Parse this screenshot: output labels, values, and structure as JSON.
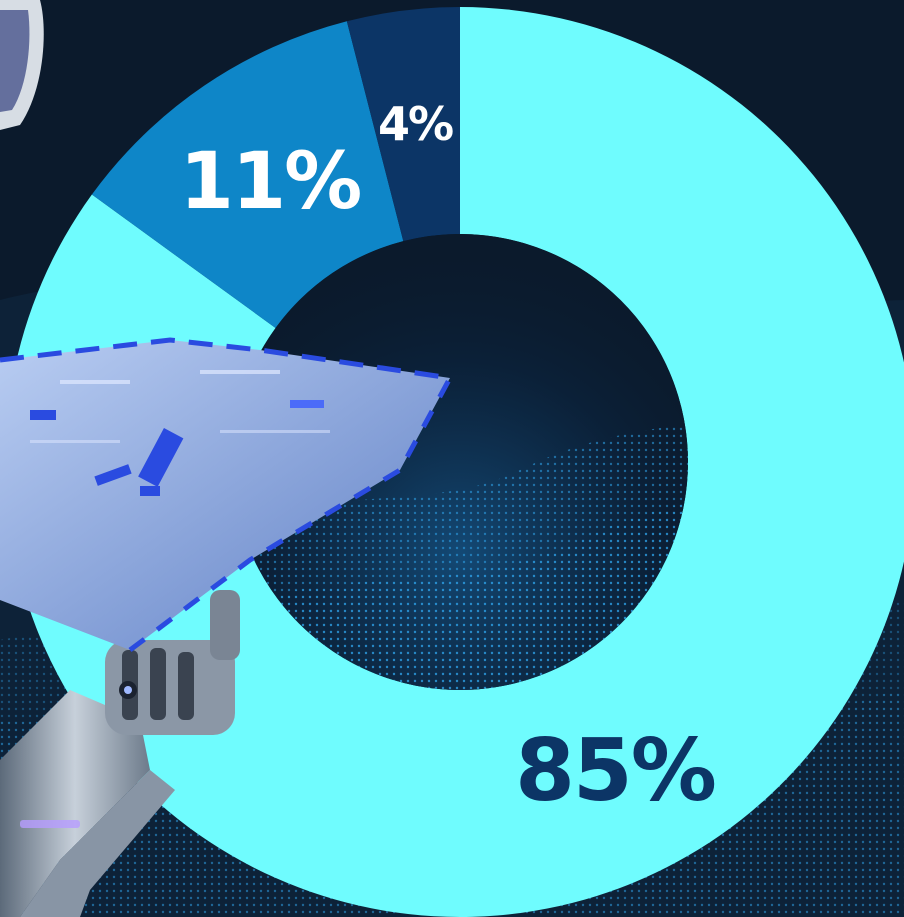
{
  "chart_data": {
    "type": "pie",
    "style": "donut",
    "title": "",
    "categories": [
      "",
      "",
      ""
    ],
    "values": [
      85,
      11,
      4
    ],
    "labels": [
      "85%",
      "11%",
      "4%"
    ],
    "colors": [
      "#6ffcfe",
      "#0e86c8",
      "#0c3566"
    ],
    "label_colors": [
      "#0c3566",
      "#ffffff",
      "#ffffff"
    ],
    "legend": "none",
    "start": "top",
    "direction": "clockwise"
  },
  "background": {
    "colors": {
      "base": "#0b1a2c",
      "wave": "#1f8fd6",
      "robot_arm": "#9aa6b4",
      "circuit_panel": "#7f9fd8",
      "circuit_accent": "#2a4be0"
    }
  }
}
